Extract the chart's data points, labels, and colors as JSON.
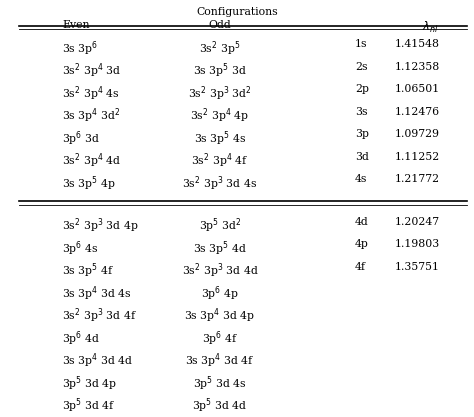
{
  "title": "Configurations",
  "section1_even": [
    "3s 3p$^6$",
    "3s$^2$ 3p$^4$ 3d",
    "3s$^2$ 3p$^4$ 4s",
    "3s 3p$^4$ 3d$^2$",
    "3p$^6$ 3d",
    "3s$^2$ 3p$^4$ 4d",
    "3s 3p$^5$ 4p"
  ],
  "section1_odd": [
    "3s$^2$ 3p$^5$",
    "3s 3p$^5$ 3d",
    "3s$^2$ 3p$^3$ 3d$^2$",
    "3s$^2$ 3p$^4$ 4p",
    "3s 3p$^5$ 4s",
    "3s$^2$ 3p$^4$ 4f",
    "3s$^2$ 3p$^3$ 3d 4s"
  ],
  "section1_nl": [
    "1s",
    "2s",
    "2p",
    "3s",
    "3p",
    "3d",
    "4s"
  ],
  "section1_lambda": [
    "1.41548",
    "1.12358",
    "1.06501",
    "1.12476",
    "1.09729",
    "1.11252",
    "1.21772"
  ],
  "section2_even": [
    "3s$^2$ 3p$^3$ 3d 4p",
    "3p$^6$ 4s",
    "3s 3p$^5$ 4f",
    "3s 3p$^4$ 3d 4s",
    "3s$^2$ 3p$^3$ 3d 4f",
    "3p$^6$ 4d",
    "3s 3p$^4$ 3d 4d",
    "3p$^5$ 3d 4p",
    "3p$^5$ 3d 4f"
  ],
  "section2_odd": [
    "3p$^5$ 3d$^2$",
    "3s 3p$^5$ 4d",
    "3s$^2$ 3p$^3$ 3d 4d",
    "3p$^6$ 4p",
    "3s 3p$^4$ 3d 4p",
    "3p$^6$ 4f",
    "3s 3p$^4$ 3d 4f",
    "3p$^5$ 3d 4s",
    "3p$^5$ 3d 4d"
  ],
  "section2_nl": [
    "4d",
    "4p",
    "4f",
    "",
    "",
    "",
    "",
    "",
    ""
  ],
  "section2_lambda": [
    "1.20247",
    "1.19803",
    "1.35751",
    "",
    "",
    "",
    "",
    "",
    ""
  ],
  "bg_color": "#ffffff",
  "text_color": "#000000",
  "fontsize": 7.8
}
